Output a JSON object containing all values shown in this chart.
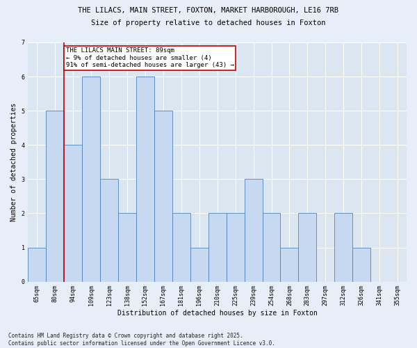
{
  "title1": "THE LILACS, MAIN STREET, FOXTON, MARKET HARBOROUGH, LE16 7RB",
  "title2": "Size of property relative to detached houses in Foxton",
  "xlabel": "Distribution of detached houses by size in Foxton",
  "ylabel": "Number of detached properties",
  "categories": [
    "65sqm",
    "80sqm",
    "94sqm",
    "109sqm",
    "123sqm",
    "138sqm",
    "152sqm",
    "167sqm",
    "181sqm",
    "196sqm",
    "210sqm",
    "225sqm",
    "239sqm",
    "254sqm",
    "268sqm",
    "283sqm",
    "297sqm",
    "312sqm",
    "326sqm",
    "341sqm",
    "355sqm"
  ],
  "values": [
    1,
    5,
    4,
    6,
    3,
    2,
    6,
    5,
    2,
    1,
    2,
    2,
    3,
    2,
    1,
    2,
    0,
    2,
    1,
    0,
    0
  ],
  "bar_color": "#c6d9f1",
  "bar_edge_color": "#4f81bd",
  "highlight_line_color": "#c00000",
  "annotation_text": "THE LILACS MAIN STREET: 89sqm\n← 9% of detached houses are smaller (4)\n91% of semi-detached houses are larger (43) →",
  "annotation_box_color": "#ffffff",
  "annotation_box_edge": "#c00000",
  "ylim": [
    0,
    7
  ],
  "yticks": [
    0,
    1,
    2,
    3,
    4,
    5,
    6,
    7
  ],
  "footer": "Contains HM Land Registry data © Crown copyright and database right 2025.\nContains public sector information licensed under the Open Government Licence v3.0.",
  "background_color": "#dce6f1",
  "plot_bg_color": "#dce6f1",
  "fig_background_color": "#e8eef7",
  "title_fontsize": 7.5,
  "tick_fontsize": 6,
  "label_fontsize": 7,
  "annot_fontsize": 6.5
}
